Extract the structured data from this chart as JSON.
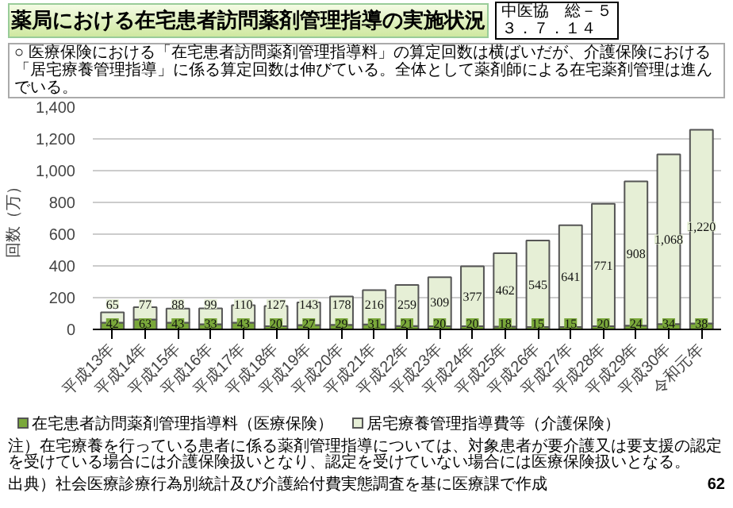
{
  "chart_data": {
    "type": "bar",
    "stacked": true,
    "title": "薬局における在宅患者訪問薬剤管理指導の実施状況",
    "subtitle": "○ 医療保険における「在宅患者訪問薬剤管理指導料」の算定回数は横ばいだが、介護保険における「居宅療養管理指導」に係る算定回数は伸びている。全体として薬剤師による在宅薬剤管理は進んでいる。",
    "ylabel": "回数（万）",
    "categories": [
      "平成13年",
      "平成14年",
      "平成15年",
      "平成16年",
      "平成17年",
      "平成18年",
      "平成19年",
      "平成20年",
      "平成21年",
      "平成22年",
      "平成23年",
      "平成24年",
      "平成25年",
      "平成26年",
      "平成27年",
      "平成28年",
      "平成29年",
      "平成30年",
      "令和元年"
    ],
    "series": [
      {
        "name": "在宅患者訪問薬剤管理指導料（医療保険）",
        "color": "#7aa83a",
        "values": [
          42,
          63,
          43,
          33,
          43,
          20,
          27,
          29,
          31,
          21,
          20,
          20,
          18,
          15,
          15,
          20,
          24,
          34,
          38
        ],
        "value_labels": [
          "42",
          "63",
          "43",
          "33",
          "43",
          "20",
          "27",
          "29",
          "31",
          "21",
          "20",
          "20",
          "18",
          "15",
          "15",
          "20",
          "24",
          "34",
          "38"
        ]
      },
      {
        "name": "居宅療養管理指導費等（介護保険）",
        "color": "#e6efd6",
        "values": [
          65,
          77,
          88,
          99,
          110,
          127,
          143,
          178,
          216,
          259,
          309,
          377,
          462,
          545,
          641,
          771,
          908,
          1068,
          1220
        ],
        "value_labels": [
          "65",
          "77",
          "88",
          "99",
          "110",
          "127",
          "143",
          "178",
          "216",
          "259",
          "309",
          "377",
          "462",
          "545",
          "641",
          "771",
          "908",
          "1,068",
          "1,220"
        ]
      }
    ],
    "ylim": [
      0,
      1400
    ],
    "yticks": [
      0,
      200,
      400,
      600,
      800,
      {
        "value": 1000,
        "label": "1,000"
      },
      {
        "value": 1200,
        "label": "1,200"
      },
      {
        "value": 1400,
        "label": "1,400"
      }
    ],
    "grid": "y",
    "legend": "bottom",
    "annotations": [
      "中医協　総－５",
      "３．７．１４",
      "注）在宅療養を行っている患者に係る薬剤管理指導については、対象患者が要介護又は要支援の認定を受けている場合には介護保険扱いとなり、認定を受けていない場合には医療保険扱いとなる。",
      "出典）社会医療診療行為別統計及び介護給付費実態調査を基に医療課で作成",
      "62"
    ]
  }
}
